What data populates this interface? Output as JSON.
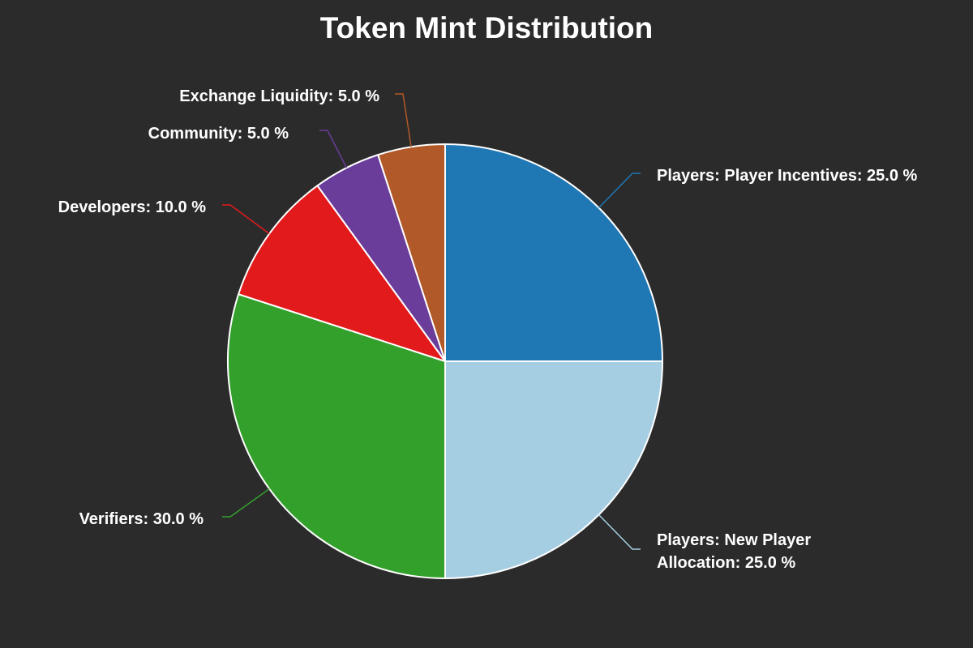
{
  "chart_data": {
    "type": "pie",
    "title": "Token Mint Distribution",
    "unit": "%",
    "slices": [
      {
        "label_lines": [
          "Players: Player Incentives: 25.0 %"
        ],
        "value": 25.0,
        "color": "#1f77b4"
      },
      {
        "label_lines": [
          "Players: New Player",
          "Allocation: 25.0 %"
        ],
        "value": 25.0,
        "color": "#a6cee3"
      },
      {
        "label_lines": [
          "Verifiers: 30.0 %"
        ],
        "value": 30.0,
        "color": "#33a02c"
      },
      {
        "label_lines": [
          "Developers: 10.0 %"
        ],
        "value": 10.0,
        "color": "#e31a1c"
      },
      {
        "label_lines": [
          "Community: 5.0 %"
        ],
        "value": 5.0,
        "color": "#6a3d9a"
      },
      {
        "label_lines": [
          "Exchange Liquidity: 5.0 %"
        ],
        "value": 5.0,
        "color": "#b15928"
      }
    ],
    "start_angle_deg": 90,
    "direction": "clockwise"
  }
}
